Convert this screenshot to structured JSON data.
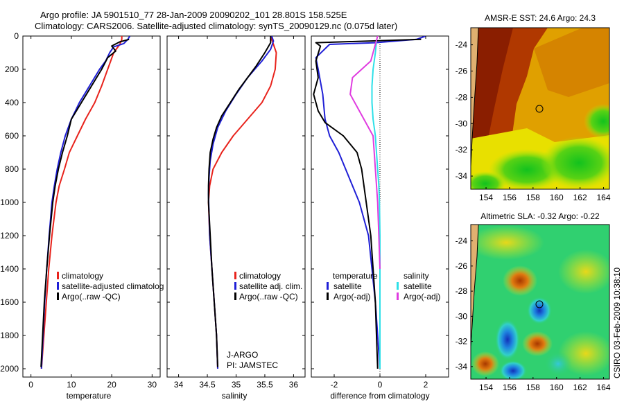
{
  "title": {
    "line1": "Argo profile: JA 5901510_77 28-Jan-2009 20090202_101 28.801S 158.525E",
    "line2": "Climatology: CARS2006. Satellite-adjusted climatology: synTS_20090129.nc (0.075d later)"
  },
  "colors": {
    "climatology": "#e8231c",
    "satellite": "#1f1fd6",
    "argo": "#000000",
    "sal_satellite": "#2de0e8",
    "sal_argo": "#e03ce0"
  },
  "pressure_ticks": [
    "0",
    "200",
    "400",
    "600",
    "800",
    "1000",
    "1200",
    "1400",
    "1600",
    "1800",
    "2000"
  ],
  "chart_data": [
    {
      "type": "line",
      "panel": "temperature",
      "xlabel": "temperature",
      "xlim": [
        -2,
        32
      ],
      "ylim": [
        0,
        2050
      ],
      "x_ticks": [
        "0",
        "10",
        "20",
        "30"
      ],
      "legend": {
        "entries": [
          "climatology",
          "satellite-adjusted climatolog",
          "Argo(..raw -QC)"
        ]
      },
      "series": [
        {
          "name": "climatology",
          "color": "climatology",
          "points": [
            [
              22.5,
              0
            ],
            [
              22.5,
              20
            ],
            [
              22,
              50
            ],
            [
              20.5,
              100
            ],
            [
              19,
              200
            ],
            [
              17.5,
              300
            ],
            [
              15.8,
              400
            ],
            [
              13.5,
              500
            ],
            [
              11.5,
              600
            ],
            [
              9.5,
              700
            ],
            [
              8.3,
              800
            ],
            [
              7,
              900
            ],
            [
              6.2,
              1000
            ],
            [
              5.2,
              1200
            ],
            [
              4.4,
              1400
            ],
            [
              3.8,
              1600
            ],
            [
              3.2,
              1800
            ],
            [
              2.6,
              2000
            ]
          ]
        },
        {
          "name": "satellite-adjusted climatolog",
          "color": "satellite",
          "points": [
            [
              24.5,
              0
            ],
            [
              24,
              20
            ],
            [
              23,
              45
            ],
            [
              20.5,
              65
            ],
            [
              19.5,
              100
            ],
            [
              18.5,
              150
            ],
            [
              17,
              200
            ],
            [
              14.5,
              300
            ],
            [
              12,
              400
            ],
            [
              10,
              500
            ],
            [
              8.5,
              600
            ],
            [
              7.4,
              700
            ],
            [
              6.5,
              800
            ],
            [
              5.8,
              900
            ],
            [
              5.2,
              1000
            ],
            [
              4.5,
              1200
            ],
            [
              3.9,
              1400
            ],
            [
              3.4,
              1600
            ],
            [
              3,
              1800
            ],
            [
              2.6,
              2000
            ]
          ]
        },
        {
          "name": "Argo(..raw -QC)",
          "color": "argo",
          "points": [
            [
              24.3,
              20
            ],
            [
              22,
              35
            ],
            [
              20,
              60
            ],
            [
              21,
              90
            ],
            [
              19,
              130
            ],
            [
              17.5,
              200
            ],
            [
              15,
              300
            ],
            [
              12.5,
              400
            ],
            [
              10,
              500
            ],
            [
              9,
              600
            ],
            [
              7.8,
              700
            ],
            [
              6.8,
              800
            ],
            [
              6,
              900
            ],
            [
              5.4,
              1000
            ],
            [
              4.6,
              1200
            ],
            [
              3.9,
              1400
            ],
            [
              3.3,
              1600
            ],
            [
              2.9,
              1800
            ],
            [
              2.5,
              1990
            ]
          ]
        }
      ]
    },
    {
      "type": "line",
      "panel": "salinity",
      "xlabel": "salinity",
      "xlim": [
        33.8,
        36.2
      ],
      "ylim": [
        0,
        2050
      ],
      "x_ticks": [
        "34",
        "34.5",
        "35",
        "35.5",
        "36"
      ],
      "legend": {
        "entries": [
          "climatology",
          "satellite adj. clim.",
          "Argo(..raw -QC)"
        ]
      },
      "annotation": {
        "line1": "J-ARGO",
        "line2": "PI: JAMSTEC"
      },
      "series": [
        {
          "name": "climatology",
          "color": "climatology",
          "points": [
            [
              35.6,
              0
            ],
            [
              35.65,
              50
            ],
            [
              35.7,
              100
            ],
            [
              35.68,
              200
            ],
            [
              35.6,
              300
            ],
            [
              35.45,
              400
            ],
            [
              35.2,
              500
            ],
            [
              34.95,
              600
            ],
            [
              34.75,
              700
            ],
            [
              34.6,
              800
            ],
            [
              34.54,
              900
            ],
            [
              34.52,
              1000
            ],
            [
              34.54,
              1200
            ],
            [
              34.58,
              1400
            ],
            [
              34.62,
              1600
            ],
            [
              34.66,
              1800
            ],
            [
              34.68,
              2000
            ]
          ]
        },
        {
          "name": "satellite adj. clim.",
          "color": "satellite",
          "points": [
            [
              35.62,
              0
            ],
            [
              35.65,
              30
            ],
            [
              35.6,
              80
            ],
            [
              35.45,
              150
            ],
            [
              35.2,
              250
            ],
            [
              35,
              350
            ],
            [
              34.82,
              450
            ],
            [
              34.68,
              550
            ],
            [
              34.6,
              650
            ],
            [
              34.55,
              750
            ],
            [
              34.53,
              850
            ],
            [
              34.52,
              950
            ],
            [
              34.54,
              1200
            ],
            [
              34.58,
              1400
            ],
            [
              34.62,
              1600
            ],
            [
              34.66,
              1800
            ],
            [
              34.68,
              2000
            ]
          ]
        },
        {
          "name": "Argo(..raw -QC)",
          "color": "argo",
          "points": [
            [
              35.6,
              0
            ],
            [
              35.6,
              40
            ],
            [
              35.5,
              100
            ],
            [
              35.35,
              180
            ],
            [
              35.2,
              250
            ],
            [
              35.05,
              320
            ],
            [
              34.9,
              400
            ],
            [
              34.75,
              480
            ],
            [
              34.66,
              550
            ],
            [
              34.6,
              620
            ],
            [
              34.55,
              700
            ],
            [
              34.53,
              800
            ],
            [
              34.52,
              900
            ],
            [
              34.52,
              1000
            ],
            [
              34.55,
              1200
            ],
            [
              34.58,
              1400
            ],
            [
              34.62,
              1600
            ],
            [
              34.66,
              1800
            ],
            [
              34.68,
              1990
            ]
          ]
        }
      ]
    },
    {
      "type": "line",
      "panel": "difference",
      "xlabel": "difference from climatology",
      "xlim": [
        -3,
        3
      ],
      "ylim": [
        0,
        2050
      ],
      "x_ticks": [
        "-2",
        "0",
        "2"
      ],
      "legend": {
        "header_temp": "temperature",
        "header_sal": "salinity",
        "entries": [
          "satellite",
          "Argo(-adj)",
          "satellite",
          "Argo(-adj)"
        ]
      },
      "series": [
        {
          "name": "satellite",
          "color": "satellite",
          "points": [
            [
              2,
              0
            ],
            [
              1.6,
              20
            ],
            [
              -0.2,
              40
            ],
            [
              -2.2,
              50
            ],
            [
              -2.8,
              130
            ],
            [
              -2.7,
              200
            ],
            [
              -2.5,
              350
            ],
            [
              -2.4,
              500
            ],
            [
              -2.2,
              600
            ],
            [
              -1.8,
              700
            ],
            [
              -1.5,
              800
            ],
            [
              -1.2,
              900
            ],
            [
              -0.9,
              1000
            ],
            [
              -0.7,
              1100
            ],
            [
              -0.5,
              1200
            ],
            [
              -0.35,
              1400
            ],
            [
              -0.2,
              1600
            ],
            [
              -0.1,
              1800
            ],
            [
              0,
              2000
            ]
          ]
        },
        {
          "name": "Argo(-adj)",
          "color": "argo",
          "points": [
            [
              1.8,
              20
            ],
            [
              -2.8,
              40
            ],
            [
              -2.6,
              60
            ],
            [
              -2.8,
              150
            ],
            [
              -2.7,
              250
            ],
            [
              -2.9,
              350
            ],
            [
              -2.7,
              450
            ],
            [
              -2.4,
              520
            ],
            [
              -1.6,
              600
            ],
            [
              -1,
              700
            ],
            [
              -0.8,
              800
            ],
            [
              -0.6,
              1000
            ],
            [
              -0.4,
              1200
            ],
            [
              -0.3,
              1400
            ],
            [
              -0.2,
              1600
            ],
            [
              -0.15,
              1800
            ],
            [
              -0.1,
              2000
            ]
          ]
        },
        {
          "name": "satellite",
          "color": "sal_satellite",
          "points": [
            [
              -0.15,
              30
            ],
            [
              -0.2,
              100
            ],
            [
              -0.3,
              200
            ],
            [
              -0.35,
              300
            ],
            [
              -0.35,
              400
            ],
            [
              -0.3,
              500
            ],
            [
              -0.2,
              600
            ],
            [
              -0.15,
              700
            ],
            [
              -0.1,
              800
            ],
            [
              -0.05,
              900
            ],
            [
              -0.02,
              1000
            ],
            [
              0,
              1200
            ],
            [
              0,
              1600
            ],
            [
              0,
              2000
            ]
          ]
        },
        {
          "name": "Argo(-adj)",
          "color": "sal_argo",
          "points": [
            [
              -0.1,
              0
            ],
            [
              -0.2,
              50
            ],
            [
              -0.4,
              150
            ],
            [
              -1.2,
              250
            ],
            [
              -1.3,
              350
            ],
            [
              -0.7,
              500
            ],
            [
              -0.3,
              600
            ],
            [
              -0.2,
              800
            ],
            [
              -0.1,
              1000
            ],
            [
              -0.05,
              1200
            ],
            [
              0,
              1400
            ]
          ]
        }
      ]
    },
    {
      "type": "heatmap",
      "panel": "sst_map",
      "title": "AMSR-E SST: 24.6 Argo: 24.3",
      "x_ticks": [
        "154",
        "156",
        "158",
        "160",
        "162",
        "164"
      ],
      "y_ticks": [
        "-24",
        "-26",
        "-28",
        "-30",
        "-32",
        "-34"
      ],
      "xlim": [
        152.7,
        164.5
      ],
      "ylim": [
        -35,
        -22.7
      ],
      "profile_position": [
        158.5,
        -28.8
      ]
    },
    {
      "type": "heatmap",
      "panel": "sla_map",
      "title": "Altimetric SLA: -0.32 Argo: -0.22",
      "x_ticks": [
        "154",
        "156",
        "158",
        "160",
        "162",
        "164"
      ],
      "y_ticks": [
        "-24",
        "-26",
        "-28",
        "-30",
        "-32",
        "-34"
      ],
      "xlim": [
        152.7,
        164.5
      ],
      "ylim": [
        -35,
        -22.7
      ],
      "profile_position": [
        158.5,
        -28.8
      ]
    }
  ],
  "credit": "CSIRO 03-Feb-2009 10:38:10"
}
